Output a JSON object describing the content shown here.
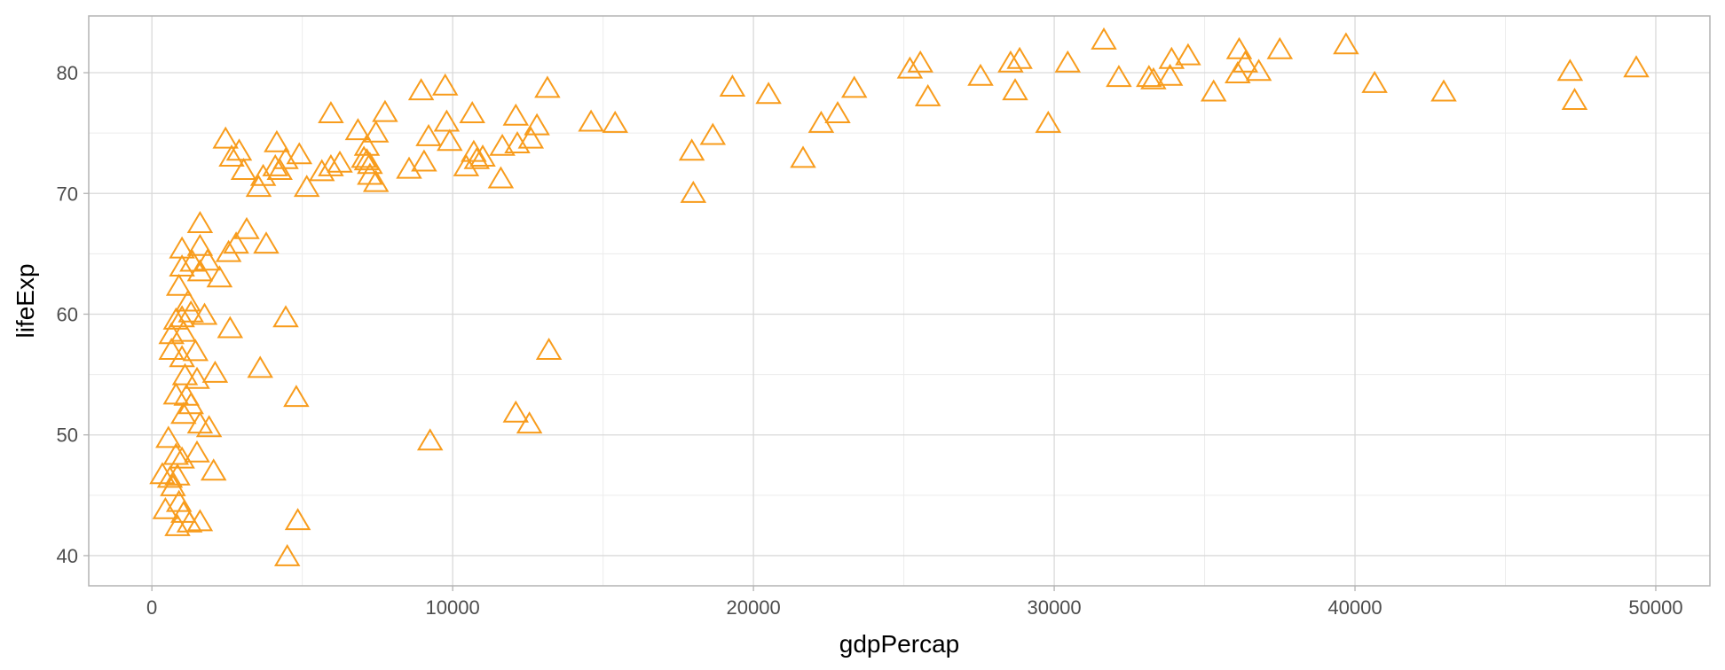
{
  "colors": {
    "point": "#f89c1c",
    "grid_major": "#d9d9d9",
    "grid_minor": "#ececec",
    "panel_border": "#b3b3b3",
    "tick_text": "#4d4d4d"
  },
  "chart_data": {
    "type": "scatter",
    "marker": "open-triangle",
    "xlabel": "gdpPercap",
    "ylabel": "lifeExp",
    "xlim": [
      -2100,
      51800
    ],
    "ylim": [
      37.5,
      84.7
    ],
    "x_ticks": [
      0,
      10000,
      20000,
      30000,
      40000,
      50000
    ],
    "y_ticks": [
      40,
      50,
      60,
      70,
      80
    ],
    "grid": true,
    "legend": "none",
    "points": [
      [
        9750,
        79
      ],
      [
        8950,
        78.6
      ],
      [
        13150,
        78.8
      ],
      [
        5950,
        76.7
      ],
      [
        7750,
        76.8
      ],
      [
        10650,
        76.7
      ],
      [
        12100,
        76.5
      ],
      [
        7450,
        75.1
      ],
      [
        6850,
        75.3
      ],
      [
        9800,
        76
      ],
      [
        12800,
        75.7
      ],
      [
        9200,
        74.8
      ],
      [
        7150,
        74
      ],
      [
        9900,
        74.4
      ],
      [
        11650,
        74
      ],
      [
        12150,
        74.2
      ],
      [
        12600,
        74.6
      ],
      [
        2450,
        74.6
      ],
      [
        4150,
        74.3
      ],
      [
        2900,
        73.6
      ],
      [
        2650,
        73.1
      ],
      [
        4900,
        73.3
      ],
      [
        4450,
        72.9
      ],
      [
        4100,
        72.3
      ],
      [
        3050,
        72
      ],
      [
        3700,
        71.5
      ],
      [
        4250,
        72
      ],
      [
        3550,
        70.6
      ],
      [
        5150,
        70.6
      ],
      [
        5650,
        71.9
      ],
      [
        5950,
        72.3
      ],
      [
        6250,
        72.6
      ],
      [
        7050,
        73
      ],
      [
        7150,
        72.8
      ],
      [
        7250,
        71.6
      ],
      [
        7450,
        71
      ],
      [
        7250,
        72.5
      ],
      [
        8550,
        72.1
      ],
      [
        9050,
        72.7
      ],
      [
        10450,
        72.3
      ],
      [
        10700,
        73.5
      ],
      [
        11000,
        73.1
      ],
      [
        11600,
        71.3
      ],
      [
        10800,
        72.9
      ],
      [
        14600,
        76
      ],
      [
        15400,
        75.9
      ],
      [
        17950,
        73.6
      ],
      [
        18650,
        74.9
      ],
      [
        18000,
        70.1
      ],
      [
        19300,
        78.9
      ],
      [
        20500,
        78.3
      ],
      [
        21650,
        73
      ],
      [
        22250,
        75.9
      ],
      [
        22800,
        76.7
      ],
      [
        23350,
        78.8
      ],
      [
        25200,
        80.4
      ],
      [
        25550,
        80.9
      ],
      [
        25800,
        78.1
      ],
      [
        27550,
        79.8
      ],
      [
        28550,
        80.9
      ],
      [
        28850,
        81.2
      ],
      [
        28700,
        78.6
      ],
      [
        29800,
        75.9
      ],
      [
        30450,
        80.9
      ],
      [
        31650,
        82.8
      ],
      [
        32150,
        79.7
      ],
      [
        33150,
        79.7
      ],
      [
        33300,
        79.5
      ],
      [
        33850,
        79.8
      ],
      [
        33900,
        81.2
      ],
      [
        34450,
        81.5
      ],
      [
        35300,
        78.5
      ],
      [
        36150,
        82
      ],
      [
        36350,
        80.9
      ],
      [
        36100,
        80
      ],
      [
        36800,
        80.2
      ],
      [
        37500,
        82
      ],
      [
        39700,
        82.4
      ],
      [
        40650,
        79.2
      ],
      [
        42950,
        78.5
      ],
      [
        47150,
        80.2
      ],
      [
        47300,
        77.8
      ],
      [
        49350,
        80.5
      ],
      [
        1600,
        67.6
      ],
      [
        1000,
        65.5
      ],
      [
        1600,
        65.7
      ],
      [
        2550,
        65.2
      ],
      [
        2800,
        65.9
      ],
      [
        3150,
        67.1
      ],
      [
        3800,
        65.9
      ],
      [
        1000,
        64
      ],
      [
        1350,
        64.4
      ],
      [
        1850,
        64.5
      ],
      [
        1600,
        63.6
      ],
      [
        2250,
        63.1
      ],
      [
        900,
        62.4
      ],
      [
        1200,
        61.1
      ],
      [
        1300,
        60.2
      ],
      [
        1750,
        60
      ],
      [
        800,
        59.6
      ],
      [
        1000,
        59.8
      ],
      [
        650,
        58.4
      ],
      [
        1050,
        58.6
      ],
      [
        2600,
        58.9
      ],
      [
        4450,
        59.8
      ],
      [
        650,
        57.1
      ],
      [
        1000,
        56.5
      ],
      [
        1450,
        57
      ],
      [
        3600,
        55.6
      ],
      [
        1100,
        55
      ],
      [
        1500,
        54.7
      ],
      [
        2100,
        55.2
      ],
      [
        800,
        53.4
      ],
      [
        1150,
        53.3
      ],
      [
        1300,
        52.6
      ],
      [
        1050,
        51.8
      ],
      [
        4800,
        53.2
      ],
      [
        1600,
        51
      ],
      [
        1900,
        50.7
      ],
      [
        12100,
        51.9
      ],
      [
        12550,
        51
      ],
      [
        13200,
        57.1
      ],
      [
        9250,
        49.6
      ],
      [
        550,
        49.8
      ],
      [
        1500,
        48.6
      ],
      [
        800,
        48.4
      ],
      [
        1000,
        48.1
      ],
      [
        350,
        46.8
      ],
      [
        600,
        46.5
      ],
      [
        850,
        46.7
      ],
      [
        2050,
        47.1
      ],
      [
        700,
        45.8
      ],
      [
        450,
        43.9
      ],
      [
        900,
        44.5
      ],
      [
        1050,
        43.6
      ],
      [
        850,
        42.5
      ],
      [
        1250,
        42.8
      ],
      [
        1600,
        42.9
      ],
      [
        4850,
        43
      ],
      [
        4500,
        40
      ]
    ]
  }
}
